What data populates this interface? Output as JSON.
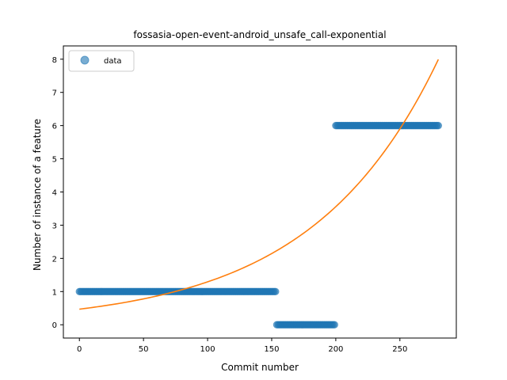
{
  "chart_data": {
    "type": "scatter",
    "title": "fossasia-open-event-android_unsafe_call-exponential",
    "xlabel": "Commit number",
    "ylabel": "Number of instance of a feature",
    "xlim": [
      -12.5,
      294
    ],
    "ylim": [
      -0.4,
      8.4
    ],
    "xticks": [
      0,
      50,
      100,
      150,
      200,
      250
    ],
    "yticks": [
      0,
      1,
      2,
      3,
      4,
      5,
      6,
      7,
      8
    ],
    "grid": false,
    "legend": {
      "position": "top-left",
      "entries": [
        {
          "label": "data",
          "marker": "circle",
          "color": "#1f77b4"
        }
      ]
    },
    "series": [
      {
        "name": "data",
        "kind": "points",
        "color": "#1f77b4",
        "segments": [
          {
            "x_start": 0,
            "x_end": 153,
            "y": 1
          },
          {
            "x_start": 154,
            "x_end": 199,
            "y": 0
          },
          {
            "x_start": 200,
            "x_end": 280,
            "y": 6
          }
        ]
      },
      {
        "kind": "line",
        "color": "#ff7f0e",
        "function": "exponential",
        "a": 0.47,
        "b": 0.01012,
        "x_range": [
          0,
          280
        ]
      }
    ]
  }
}
